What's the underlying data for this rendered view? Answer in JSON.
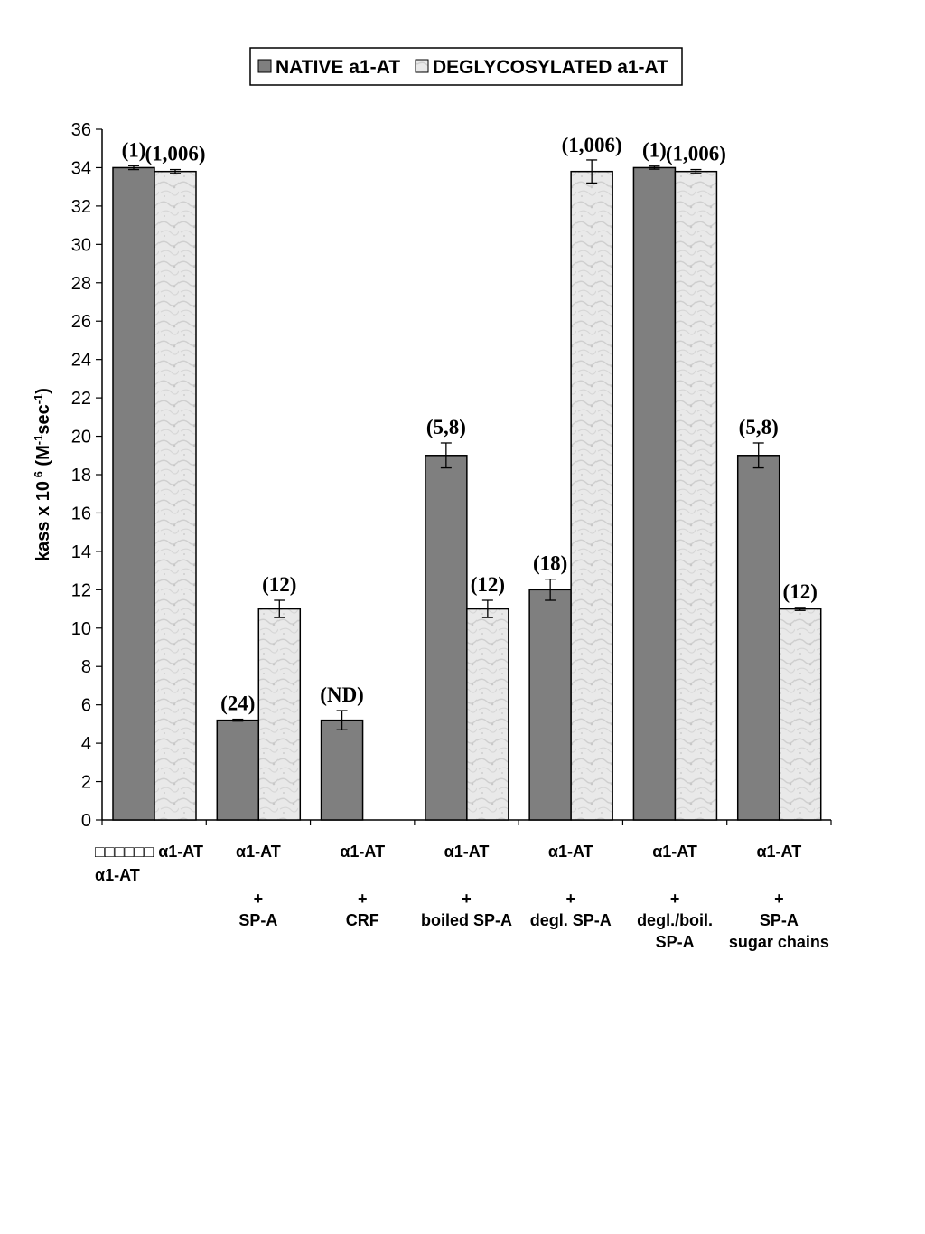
{
  "chart_data": {
    "type": "bar",
    "ylabel": "kass x 10 6 (M-1sec-1)",
    "ylim": [
      0,
      36
    ],
    "ytick_step": 2,
    "grid": false,
    "legend_position": "top-center",
    "series": [
      {
        "name": "NATIVE a1-AT",
        "color": "#7f7f7f",
        "values": [
          34,
          5.2,
          5.2,
          19,
          12,
          34,
          19
        ],
        "errors": [
          0.1,
          0.05,
          0.5,
          0.65,
          0.55,
          0.08,
          0.65
        ],
        "labels": [
          "(1)",
          "(24)",
          "(ND)",
          "(5,8)",
          "(18)",
          "(1)",
          "(5,8)"
        ]
      },
      {
        "name": "DEGLYCOSYLATED a1-AT",
        "color": "#e6e6e6",
        "values": [
          33.8,
          11,
          null,
          11,
          33.8,
          33.8,
          11
        ],
        "errors": [
          0.1,
          0.45,
          null,
          0.45,
          0.6,
          0.1,
          0.08
        ],
        "labels": [
          "(1,006)",
          "(12)",
          "",
          "(12)",
          "(1,006)",
          "(1,006)",
          "(12)"
        ]
      }
    ],
    "categories": [
      [
        "□□□□□□ α1-AT",
        "α1-AT"
      ],
      [
        "α1-AT",
        "+",
        "SP-A"
      ],
      [
        "α1-AT",
        "+",
        "CRF"
      ],
      [
        "α1-AT",
        "+",
        "boiled SP-A"
      ],
      [
        "α1-AT",
        "+",
        "degl. SP-A"
      ],
      [
        "α1-AT",
        "+",
        "degl./boil.",
        "SP-A"
      ],
      [
        "α1-AT",
        "+",
        "SP-A",
        "sugar chains"
      ]
    ]
  }
}
